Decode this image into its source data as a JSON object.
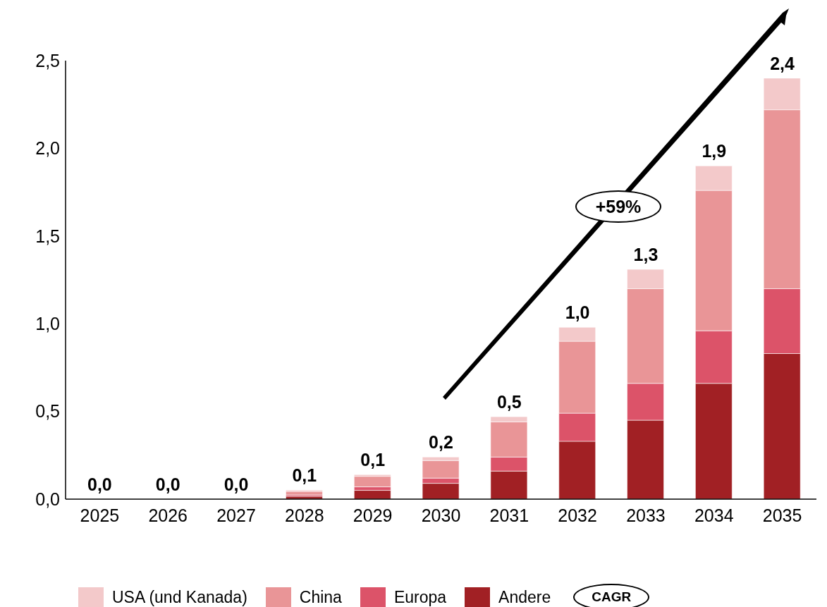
{
  "chart_data": {
    "type": "bar",
    "stacked": true,
    "categories": [
      "2025",
      "2026",
      "2027",
      "2028",
      "2029",
      "2030",
      "2031",
      "2032",
      "2033",
      "2034",
      "2035"
    ],
    "series": [
      {
        "name": "Andere",
        "color": "#a12024",
        "values": [
          0,
          0,
          0,
          0.016,
          0.05,
          0.09,
          0.16,
          0.33,
          0.45,
          0.66,
          0.83
        ]
      },
      {
        "name": "Europa",
        "color": "#dc5369",
        "values": [
          0,
          0,
          0,
          0.008,
          0.02,
          0.03,
          0.08,
          0.16,
          0.21,
          0.3,
          0.37
        ]
      },
      {
        "name": "China",
        "color": "#e99597",
        "values": [
          0,
          0,
          0,
          0.02,
          0.06,
          0.1,
          0.2,
          0.41,
          0.54,
          0.8,
          1.02
        ]
      },
      {
        "name": "USA (und Kanada)",
        "color": "#f3c9ca",
        "values": [
          0,
          0,
          0,
          0.007,
          0.01,
          0.02,
          0.03,
          0.08,
          0.11,
          0.14,
          0.18
        ]
      }
    ],
    "totals": [
      "0,0",
      "0,0",
      "0,0",
      "0,1",
      "0,1",
      "0,2",
      "0,5",
      "1,0",
      "1,3",
      "1,9",
      "2,4"
    ],
    "ylim": [
      0,
      2.5
    ],
    "yticks": [
      {
        "value": 0,
        "label": "0,0"
      },
      {
        "value": 0.5,
        "label": "0,5"
      },
      {
        "value": 1,
        "label": "1,0"
      },
      {
        "value": 1.5,
        "label": "1,5"
      },
      {
        "value": 2,
        "label": "2,0"
      },
      {
        "value": 2.5,
        "label": "2,5"
      }
    ],
    "grid": false,
    "legend": "bottom",
    "annotations": [
      "+59%",
      "CAGR"
    ]
  }
}
